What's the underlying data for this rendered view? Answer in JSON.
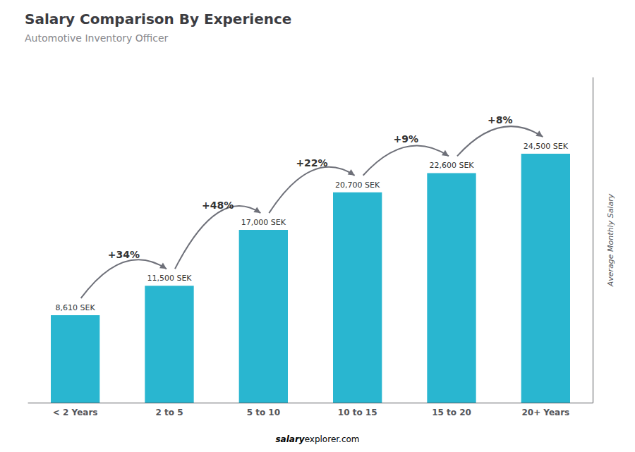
{
  "chart_data": {
    "type": "bar",
    "title": "Salary Comparison By Experience",
    "subtitle": "Automotive Inventory Officer",
    "categories": [
      "< 2 Years",
      "2 to 5",
      "5 to 10",
      "10 to 15",
      "15 to 20",
      "20+ Years"
    ],
    "values": [
      8610,
      11500,
      17000,
      20700,
      22600,
      24500
    ],
    "value_labels": [
      "8,610 SEK",
      "11,500 SEK",
      "17,000 SEK",
      "20,700 SEK",
      "22,600 SEK",
      "24,500 SEK"
    ],
    "data_labels": true,
    "color": "#29b6d0",
    "ylabel": "Average Monthly Salary",
    "ylim": [
      0,
      32000
    ],
    "tick_labels": "x",
    "grid": false,
    "annotations": [
      {
        "category": "2 to 5",
        "text": "+34%"
      },
      {
        "category": "5 to 10",
        "text": "+48%"
      },
      {
        "category": "10 to 15",
        "text": "+22%"
      },
      {
        "category": "15 to 20",
        "text": "+9%"
      },
      {
        "category": "20+ Years",
        "text": "+8%"
      }
    ],
    "footer": [
      "salary",
      "explorer.com"
    ]
  }
}
